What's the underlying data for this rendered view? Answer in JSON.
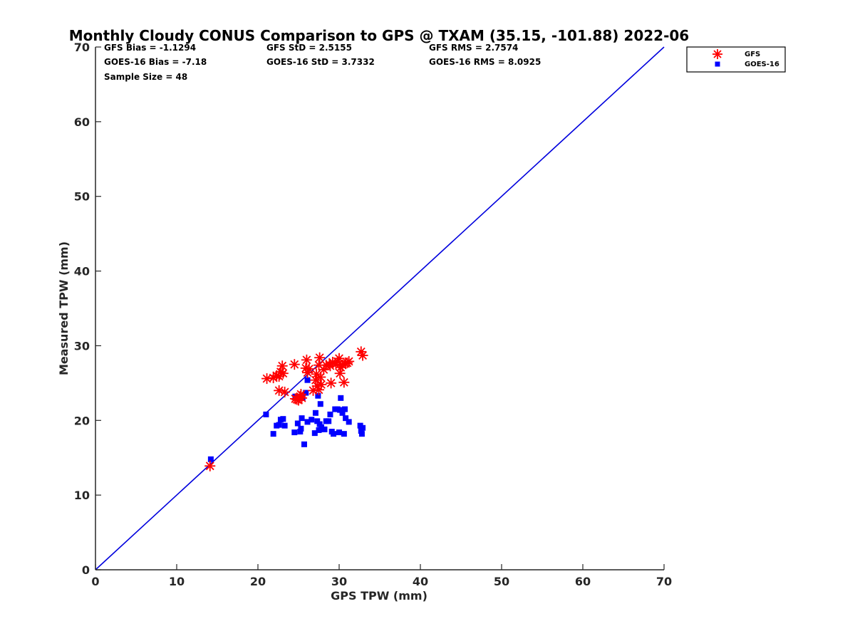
{
  "chart_data": {
    "type": "scatter",
    "title": "Monthly Cloudy CONUS Comparison to GPS @ TXAM (35.15, -101.88) 2022-06",
    "xlabel": "GPS TPW (mm)",
    "ylabel": "Measured TPW (mm)",
    "xlim": [
      0,
      70
    ],
    "ylim": [
      0,
      70
    ],
    "xticks": [
      "0",
      "10",
      "20",
      "30",
      "40",
      "50",
      "60",
      "70"
    ],
    "yticks": [
      "0",
      "10",
      "20",
      "30",
      "40",
      "50",
      "60",
      "70"
    ],
    "grid": false,
    "legend_position": "outside-top-right",
    "reference_line": {
      "x": [
        0,
        70
      ],
      "y": [
        0,
        70
      ],
      "color": "#0000dd"
    },
    "stats": [
      "GFS Bias = -1.1294",
      "GFS StD = 2.5155",
      "GFS RMS = 2.7574",
      "GOES-16 Bias = -7.18",
      "GOES-16 StD = 3.7332",
      "GOES-16 RMS = 8.0925",
      "Sample Size = 48"
    ],
    "series": [
      {
        "name": "GFS",
        "marker": "asterisk",
        "color": "#ff0000",
        "points": [
          [
            14.1,
            13.9
          ],
          [
            21.1,
            25.6
          ],
          [
            21.9,
            25.7
          ],
          [
            22.3,
            26.0
          ],
          [
            22.6,
            25.9
          ],
          [
            22.8,
            26.5
          ],
          [
            23.0,
            27.3
          ],
          [
            22.6,
            24.0
          ],
          [
            23.3,
            23.8
          ],
          [
            24.5,
            27.5
          ],
          [
            24.6,
            22.9
          ],
          [
            25.0,
            22.7
          ],
          [
            25.3,
            23.5
          ],
          [
            25.4,
            23.0
          ],
          [
            25.9,
            27.0
          ],
          [
            26.0,
            28.1
          ],
          [
            26.3,
            26.9
          ],
          [
            26.8,
            24.0
          ],
          [
            27.1,
            25.4
          ],
          [
            27.3,
            24.6
          ],
          [
            27.5,
            27.4
          ],
          [
            27.6,
            28.4
          ],
          [
            27.7,
            25.8
          ],
          [
            27.8,
            24.8
          ],
          [
            27.5,
            24.1
          ],
          [
            28.1,
            26.8
          ],
          [
            28.4,
            27.4
          ],
          [
            28.8,
            27.5
          ],
          [
            29.2,
            27.8
          ],
          [
            29.0,
            25.0
          ],
          [
            29.6,
            27.5
          ],
          [
            30.0,
            28.3
          ],
          [
            30.1,
            26.3
          ],
          [
            30.4,
            27.4
          ],
          [
            30.6,
            25.1
          ],
          [
            30.8,
            27.6
          ],
          [
            31.2,
            27.9
          ],
          [
            32.7,
            29.2
          ],
          [
            32.9,
            28.7
          ],
          [
            28.9,
            27.3
          ],
          [
            29.8,
            27.9
          ],
          [
            26.1,
            26.4
          ],
          [
            27.2,
            26.2
          ],
          [
            30.2,
            27.1
          ],
          [
            25.2,
            23.2
          ],
          [
            24.8,
            22.8
          ],
          [
            23.1,
            26.3
          ],
          [
            31.0,
            27.7
          ]
        ]
      },
      {
        "name": "GOES-16",
        "marker": "square",
        "color": "#0000ff",
        "points": [
          [
            14.2,
            14.8
          ],
          [
            21.0,
            20.8
          ],
          [
            21.9,
            18.2
          ],
          [
            22.3,
            19.3
          ],
          [
            22.6,
            19.4
          ],
          [
            22.8,
            20.1
          ],
          [
            23.1,
            20.2
          ],
          [
            23.3,
            19.3
          ],
          [
            24.5,
            18.4
          ],
          [
            24.6,
            23.2
          ],
          [
            24.9,
            19.6
          ],
          [
            25.2,
            18.5
          ],
          [
            25.3,
            18.9
          ],
          [
            25.4,
            20.3
          ],
          [
            25.5,
            23.0
          ],
          [
            25.7,
            16.8
          ],
          [
            25.9,
            23.7
          ],
          [
            26.1,
            25.4
          ],
          [
            26.1,
            19.8
          ],
          [
            26.6,
            20.1
          ],
          [
            27.0,
            18.3
          ],
          [
            27.1,
            21.0
          ],
          [
            27.3,
            19.9
          ],
          [
            27.4,
            23.3
          ],
          [
            27.5,
            18.7
          ],
          [
            27.6,
            19.5
          ],
          [
            27.7,
            22.2
          ],
          [
            27.8,
            19.1
          ],
          [
            28.2,
            18.8
          ],
          [
            28.4,
            19.9
          ],
          [
            28.7,
            19.9
          ],
          [
            28.9,
            20.8
          ],
          [
            29.1,
            18.5
          ],
          [
            29.3,
            18.2
          ],
          [
            29.5,
            21.5
          ],
          [
            29.8,
            21.5
          ],
          [
            30.0,
            18.4
          ],
          [
            30.1,
            21.4
          ],
          [
            30.2,
            23.0
          ],
          [
            30.4,
            21.0
          ],
          [
            30.6,
            18.2
          ],
          [
            30.7,
            21.5
          ],
          [
            30.8,
            20.3
          ],
          [
            31.2,
            19.8
          ],
          [
            32.6,
            19.3
          ],
          [
            32.7,
            18.6
          ],
          [
            32.8,
            18.2
          ],
          [
            32.9,
            19.0
          ]
        ]
      }
    ]
  }
}
